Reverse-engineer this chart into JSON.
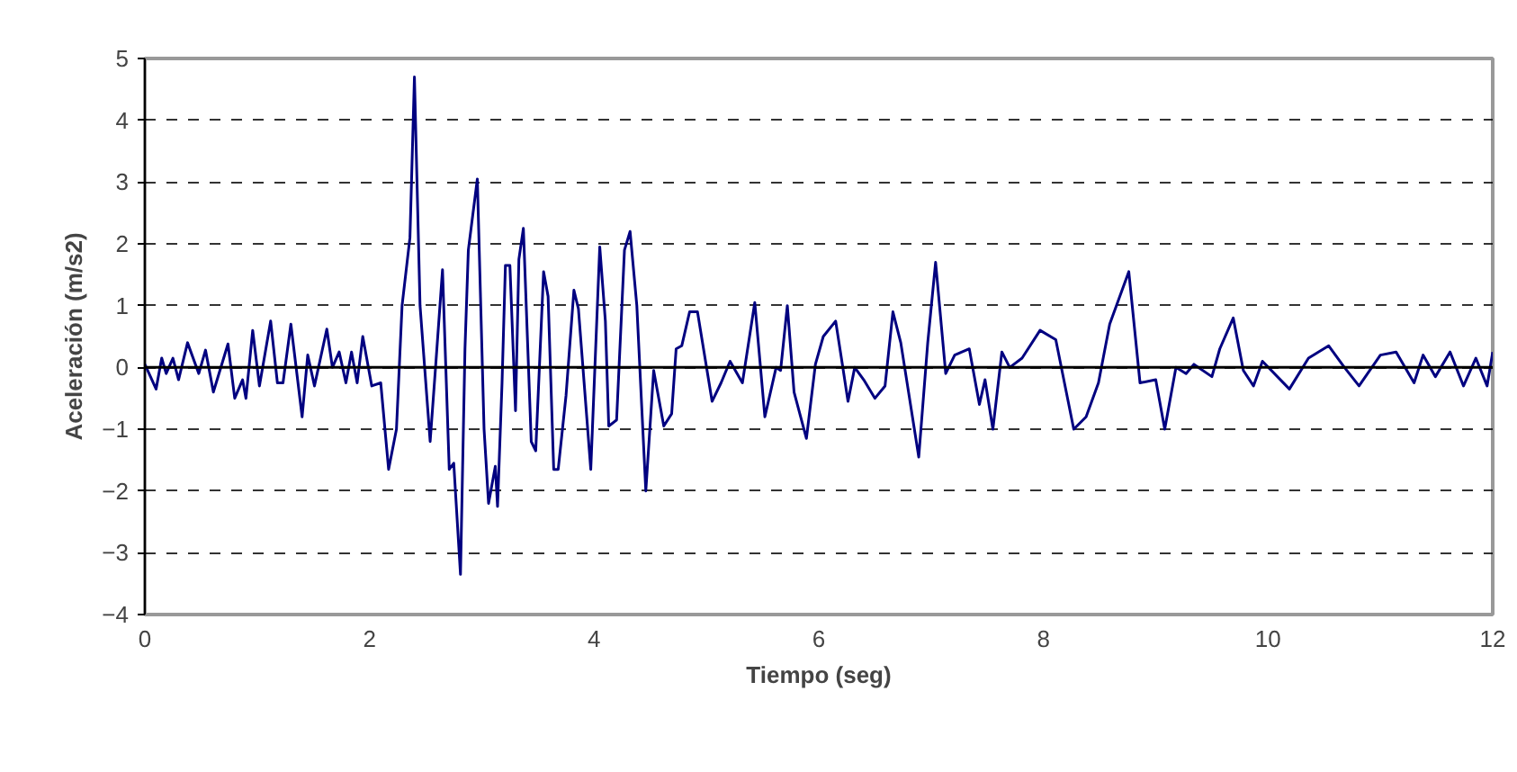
{
  "chart_data": {
    "type": "line",
    "xlabel": "Tiempo (seg)",
    "ylabel": "Aceleración (m/s2)",
    "xlim": [
      0,
      12
    ],
    "ylim": [
      -4,
      5
    ],
    "xticks": [
      0,
      2,
      4,
      6,
      8,
      10,
      12
    ],
    "yticks": [
      -4,
      -3,
      -2,
      -1,
      0,
      1,
      2,
      3,
      4,
      5
    ],
    "grid": "y",
    "marker": "none",
    "line_style": "solid",
    "ref_lines": [
      {
        "axis": "y",
        "value": 0,
        "color": "#000000"
      }
    ],
    "series": [
      {
        "color": "#000080",
        "x": [
          0,
          0.1,
          0.15,
          0.19,
          0.25,
          0.3,
          0.38,
          0.48,
          0.54,
          0.61,
          0.74,
          0.8,
          0.87,
          0.9,
          0.96,
          1.02,
          1.12,
          1.18,
          1.23,
          1.3,
          1.4,
          1.45,
          1.51,
          1.62,
          1.67,
          1.73,
          1.79,
          1.84,
          1.89,
          1.94,
          2.02,
          2.1,
          2.17,
          2.24,
          2.29,
          2.36,
          2.4,
          2.45,
          2.54,
          2.59,
          2.65,
          2.71,
          2.75,
          2.81,
          2.85,
          2.88,
          2.96,
          3.02,
          3.06,
          3.12,
          3.14,
          3.18,
          3.21,
          3.25,
          3.3,
          3.33,
          3.37,
          3.44,
          3.48,
          3.55,
          3.59,
          3.64,
          3.68,
          3.75,
          3.82,
          3.86,
          3.97,
          4.05,
          4.1,
          4.13,
          4.2,
          4.27,
          4.32,
          4.38,
          4.46,
          4.53,
          4.62,
          4.69,
          4.73,
          4.78,
          4.85,
          4.92,
          5.05,
          5.13,
          5.21,
          5.32,
          5.43,
          5.52,
          5.62,
          5.66,
          5.72,
          5.78,
          5.89,
          5.97,
          6.04,
          6.15,
          6.21,
          6.26,
          6.32,
          6.4,
          6.5,
          6.59,
          6.66,
          6.73,
          6.89,
          6.97,
          7.04,
          7.13,
          7.21,
          7.34,
          7.43,
          7.48,
          7.55,
          7.63,
          7.7,
          7.81,
          7.97,
          8.11,
          8.27,
          8.38,
          8.49,
          8.59,
          8.76,
          8.86,
          9.0,
          9.08,
          9.18,
          9.27,
          9.34,
          9.5,
          9.57,
          9.69,
          9.78,
          9.87,
          9.95,
          10.19,
          10.36,
          10.54,
          10.68,
          10.81,
          11.0,
          11.14,
          11.3,
          11.38,
          11.49,
          11.62,
          11.74,
          11.85,
          11.95,
          12.0
        ],
        "values": [
          0.05,
          -0.35,
          0.15,
          -0.1,
          0.15,
          -0.2,
          0.4,
          -0.1,
          0.28,
          -0.4,
          0.38,
          -0.5,
          -0.2,
          -0.5,
          0.6,
          -0.3,
          0.75,
          -0.25,
          -0.25,
          0.7,
          -0.8,
          0.2,
          -0.3,
          0.62,
          0.0,
          0.25,
          -0.25,
          0.25,
          -0.25,
          0.5,
          -0.3,
          -0.25,
          -1.65,
          -1.0,
          1.0,
          2.1,
          4.7,
          1.0,
          -1.2,
          0.05,
          1.58,
          -1.65,
          -1.55,
          -3.35,
          0.3,
          1.9,
          3.05,
          -1.0,
          -2.2,
          -1.6,
          -2.25,
          -0.25,
          1.65,
          1.65,
          -0.7,
          1.75,
          2.25,
          -1.2,
          -1.35,
          1.55,
          1.15,
          -1.65,
          -1.65,
          -0.45,
          1.25,
          0.95,
          -1.65,
          1.95,
          0.75,
          -0.95,
          -0.85,
          1.9,
          2.2,
          1.0,
          -2.0,
          -0.05,
          -0.95,
          -0.75,
          0.3,
          0.35,
          0.9,
          0.9,
          -0.55,
          -0.25,
          0.1,
          -0.25,
          1.05,
          -0.8,
          0.0,
          -0.05,
          1.0,
          -0.4,
          -1.15,
          0.05,
          0.5,
          0.75,
          0.05,
          -0.55,
          0.0,
          -0.2,
          -0.5,
          -0.3,
          0.9,
          0.4,
          -1.45,
          0.4,
          1.7,
          -0.1,
          0.2,
          0.3,
          -0.6,
          -0.2,
          -1.0,
          0.25,
          0.0,
          0.15,
          0.6,
          0.45,
          -1.0,
          -0.8,
          -0.25,
          0.7,
          1.55,
          -0.25,
          -0.2,
          -1.0,
          0.0,
          -0.1,
          0.05,
          -0.15,
          0.3,
          0.8,
          -0.05,
          -0.3,
          0.1,
          -0.35,
          0.15,
          0.35,
          0.0,
          -0.3,
          0.2,
          0.25,
          -0.25,
          0.2,
          -0.15,
          0.25,
          -0.3,
          0.15,
          -0.3,
          0.25
        ]
      }
    ]
  }
}
